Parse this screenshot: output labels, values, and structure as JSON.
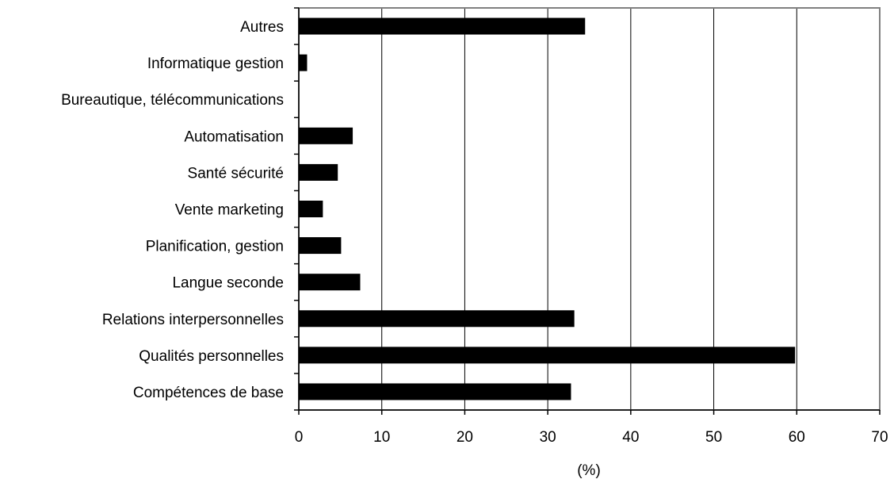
{
  "chart_data": {
    "type": "bar",
    "orientation": "horizontal",
    "categories": [
      "Autres",
      "Informatique gestion",
      "Bureautique, télécommunications",
      "Automatisation",
      "Santé sécurité",
      "Vente marketing",
      "Planification, gestion",
      "Langue seconde",
      "Relations interpersonnelles",
      "Qualités personnelles",
      "Compétences de base"
    ],
    "values": [
      34.5,
      1.0,
      0,
      6.5,
      4.7,
      2.9,
      5.1,
      7.4,
      33.2,
      59.8,
      32.8
    ],
    "xlabel": "(%)",
    "xlim": [
      0,
      70
    ],
    "xticks": [
      0,
      10,
      20,
      30,
      40,
      50,
      60,
      70
    ],
    "grid": "vertical",
    "legend": "none",
    "bar_color": "#000000"
  }
}
